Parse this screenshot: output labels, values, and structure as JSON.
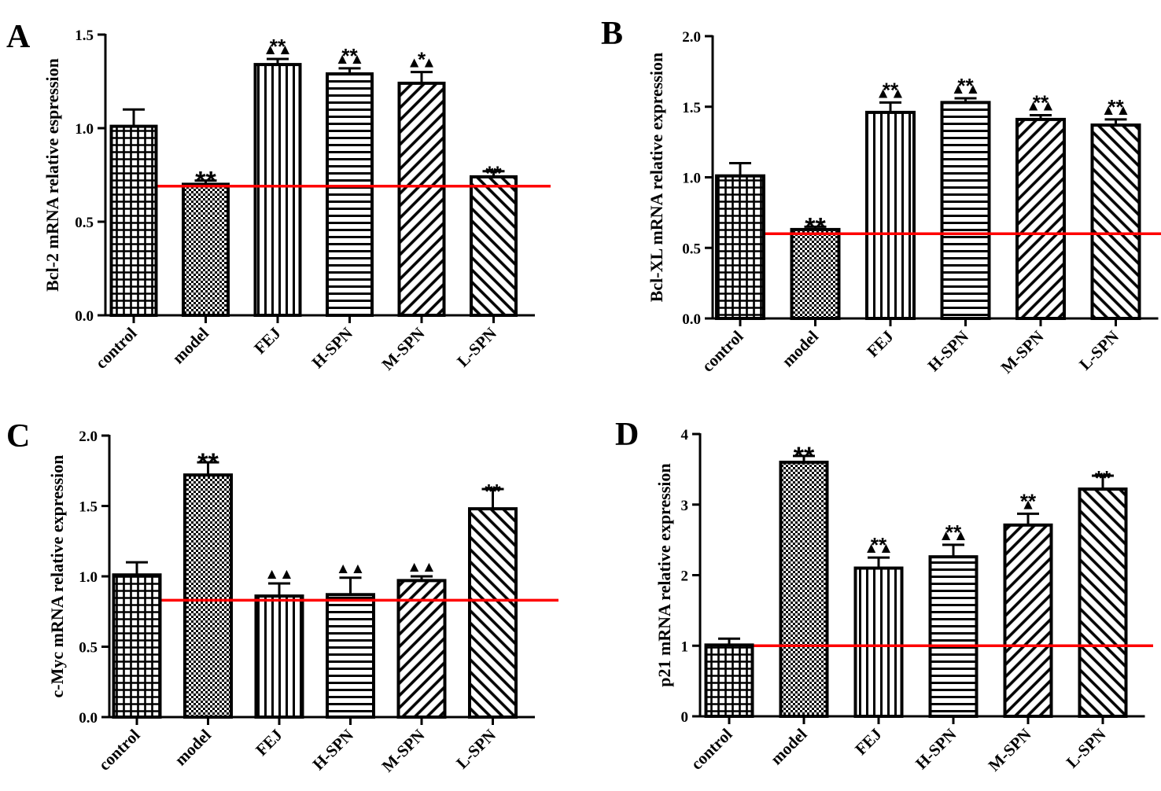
{
  "chart_data": [
    {
      "type": "bar",
      "panel": "A",
      "ylabel": "Bcl-2 mRNA relative espression",
      "categories": [
        "control",
        "model",
        "FEJ",
        "H-SPN",
        "M-SPN",
        "L-SPN"
      ],
      "values": [
        1.01,
        0.7,
        1.34,
        1.29,
        1.24,
        0.74
      ],
      "errors": [
        0.09,
        0.02,
        0.03,
        0.03,
        0.06,
        0.03
      ],
      "significance": [
        "",
        "**",
        "**",
        "**",
        "*",
        "**"
      ],
      "markers": [
        "",
        "",
        "▲▲",
        "▲▲",
        "▲▲",
        ""
      ],
      "ylim": [
        0,
        1.5
      ],
      "yticks": [
        "0.0",
        "0.5",
        "1.0",
        "1.5"
      ],
      "reference_line": 0.69
    },
    {
      "type": "bar",
      "panel": "B",
      "ylabel": "Bcl-XL mRNA relative expression",
      "categories": [
        "control",
        "model",
        "FEJ",
        "H-SPN",
        "M-SPN",
        "L-SPN"
      ],
      "values": [
        1.01,
        0.63,
        1.46,
        1.53,
        1.41,
        1.37
      ],
      "errors": [
        0.09,
        0.02,
        0.07,
        0.03,
        0.03,
        0.04
      ],
      "significance": [
        "",
        "**",
        "**",
        "**",
        "**",
        "**"
      ],
      "markers": [
        "",
        "",
        "▲▲",
        "▲▲",
        "▲▲",
        "▲▲"
      ],
      "ylim": [
        0,
        2.0
      ],
      "yticks": [
        "0.0",
        "0.5",
        "1.0",
        "1.5",
        "2.0"
      ],
      "reference_line": 0.6
    },
    {
      "type": "bar",
      "panel": "C",
      "ylabel": "c-Myc mRNA relative expression",
      "categories": [
        "control",
        "model",
        "FEJ",
        "H-SPN",
        "M-SPN",
        "L-SPN"
      ],
      "values": [
        1.01,
        1.72,
        0.86,
        0.87,
        0.97,
        1.48
      ],
      "errors": [
        0.09,
        0.09,
        0.09,
        0.12,
        0.03,
        0.14
      ],
      "significance": [
        "",
        "**",
        "",
        "",
        "",
        "**"
      ],
      "markers": [
        "",
        "",
        "▲▲",
        "▲▲",
        "▲▲",
        ""
      ],
      "ylim": [
        0,
        2.0
      ],
      "yticks": [
        "0.0",
        "0.5",
        "1.0",
        "1.5",
        "2.0"
      ],
      "reference_line": 0.83
    },
    {
      "type": "bar",
      "panel": "D",
      "ylabel": "p21 mRNA relative expression",
      "categories": [
        "control",
        "model",
        "FEJ",
        "H-SPN",
        "M-SPN",
        "L-SPN"
      ],
      "values": [
        1.01,
        3.6,
        2.1,
        2.26,
        2.71,
        3.22
      ],
      "errors": [
        0.09,
        0.09,
        0.15,
        0.17,
        0.16,
        0.19
      ],
      "significance": [
        "",
        "**",
        "**",
        "**",
        "**",
        "**"
      ],
      "markers": [
        "",
        "",
        "▲▲",
        "▲▲",
        "▲",
        ""
      ],
      "ylim": [
        0,
        4
      ],
      "yticks": [
        "0",
        "1",
        "2",
        "3",
        "4"
      ],
      "reference_line": 1.0
    }
  ],
  "colors": {
    "reference_line": "#ff0000",
    "bar_stroke": "#000000",
    "background": "#ffffff"
  },
  "patterns": [
    "grid",
    "checker",
    "vertical",
    "horizontal",
    "diagonal-up",
    "diagonal-down"
  ]
}
